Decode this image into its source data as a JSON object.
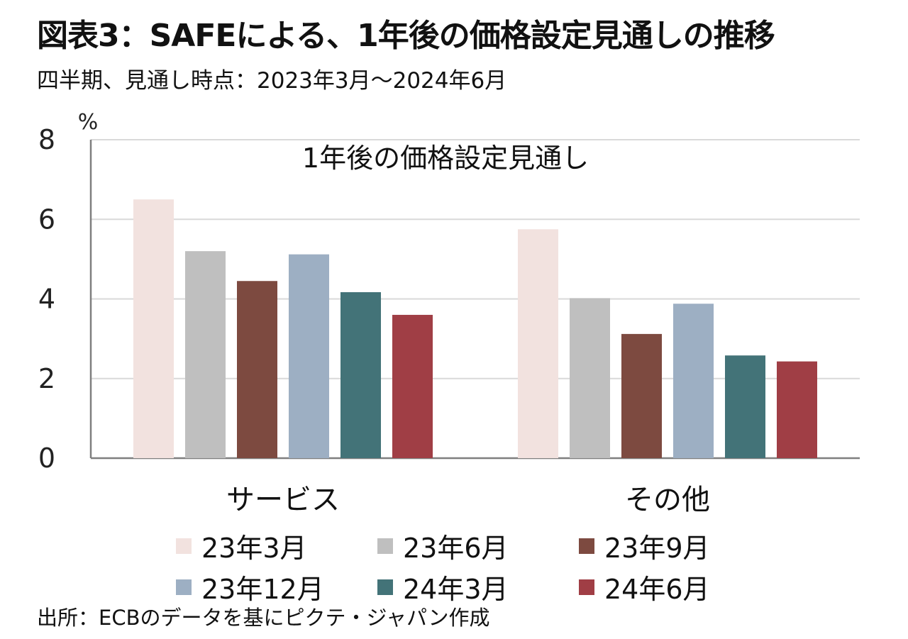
{
  "title": "図表3：SAFEによる、1年後の価格設定見通しの推移",
  "subtitle": "四半期、見通し時点：2023年3月～2024年6月",
  "source": "出所：ECBのデータを基にピクテ・ジャパン作成",
  "chart_data": {
    "type": "bar",
    "title": "1年後の価格設定見通し",
    "ylabel": "%",
    "xlabel": "",
    "ylim": [
      0,
      8
    ],
    "yticks": [
      0,
      2,
      4,
      6,
      8
    ],
    "grid": true,
    "legend_position": "bottom",
    "categories": [
      "サービス",
      "その他"
    ],
    "series": [
      {
        "name": "23年3月",
        "color": "#f2e2df",
        "values": [
          6.5,
          5.75
        ]
      },
      {
        "name": "23年6月",
        "color": "#bfbfbf",
        "values": [
          5.2,
          4.02
        ]
      },
      {
        "name": "23年9月",
        "color": "#7d4a40",
        "values": [
          4.45,
          3.12
        ]
      },
      {
        "name": "23年12月",
        "color": "#9dafc3",
        "values": [
          5.12,
          3.88
        ]
      },
      {
        "name": "24年3月",
        "color": "#437378",
        "values": [
          4.17,
          2.58
        ]
      },
      {
        "name": "24年6月",
        "color": "#a03e45",
        "values": [
          3.6,
          2.43
        ]
      }
    ]
  }
}
